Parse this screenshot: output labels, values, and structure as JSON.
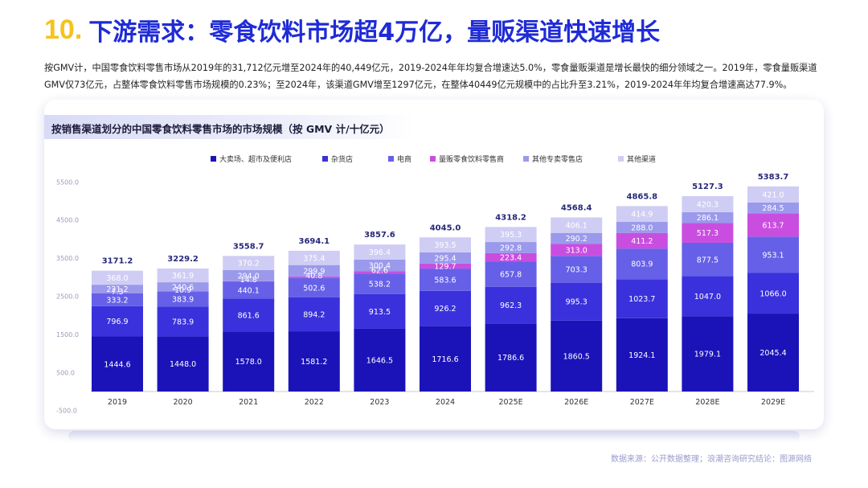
{
  "headline": {
    "number": "10.",
    "text": "下游需求：零食饮料市场超4万亿，量贩渠道快速增长"
  },
  "intro": "按GMV计，中国零食饮料零售市场从2019年的31,712亿元增至2024年的40,449亿元，2019-2024年年均复合增速达5.0%，零食量贩渠道是增长最快的细分领域之一。2019年，零食量贩渠道GMV仅73亿元，占整体零食饮料零售市场规模的0.23%；至2024年，该渠道GMV增至1297亿元，在整体40449亿元规模中的占比升至3.21%，2019-2024年年均复合增速高达77.9%。",
  "chart_title": "按销售渠道划分的中国零食饮料零售市场的市场规模（按 GMV 计/十亿元）",
  "source": "数据来源：公开数据整理；浪潮咨询研究结论：图源网络",
  "colors": [
    "#1b13b8",
    "#3a31dc",
    "#6660e8",
    "#c94ee0",
    "#9b99ec",
    "#cfcdf4"
  ],
  "chart_data": {
    "type": "bar",
    "stacked": true,
    "categories": [
      "2019",
      "2020",
      "2021",
      "2022",
      "2023",
      "2024",
      "2025E",
      "2026E",
      "2027E",
      "2028E",
      "2029E"
    ],
    "series": [
      {
        "name": "大卖场、超市及便利店",
        "values": [
          1444.6,
          1448.0,
          1578.0,
          1581.2,
          1646.5,
          1716.6,
          1786.6,
          1860.5,
          1924.1,
          1979.1,
          2045.4
        ]
      },
      {
        "name": "杂货店",
        "values": [
          796.9,
          783.9,
          861.6,
          894.2,
          913.5,
          926.2,
          962.3,
          995.3,
          1023.7,
          1047.0,
          1066.0
        ]
      },
      {
        "name": "电商",
        "values": [
          333.2,
          383.9,
          440.1,
          502.6,
          538.2,
          583.6,
          657.8,
          703.3,
          803.9,
          877.5,
          953.1
        ]
      },
      {
        "name": "量贩零食饮料零售商",
        "values": [
          7.3,
          10.9,
          14.8,
          40.8,
          62.6,
          129.7,
          223.4,
          313.0,
          411.2,
          517.3,
          613.7
        ]
      },
      {
        "name": "其他专卖零售店",
        "values": [
          221.2,
          240.6,
          294.0,
          299.9,
          300.4,
          295.4,
          292.8,
          290.2,
          288.0,
          286.1,
          284.5
        ]
      },
      {
        "name": "其他渠道",
        "values": [
          368.0,
          361.9,
          370.2,
          375.4,
          396.4,
          393.5,
          395.3,
          406.1,
          414.9,
          420.3,
          421.0
        ]
      }
    ],
    "totals": [
      "3171.2",
      "3229.2",
      "3558.7",
      "3694.1",
      "3857.6",
      "4045.0",
      "4318.2",
      "4568.4",
      "4865.8",
      "5127.3",
      "5383.7"
    ],
    "yticks": [
      "-500.0",
      "500.0",
      "1500.0",
      "2500.0",
      "3500.0",
      "4500.0",
      "5500.0"
    ],
    "ylim": [
      -500,
      5500
    ],
    "legend": "top"
  }
}
